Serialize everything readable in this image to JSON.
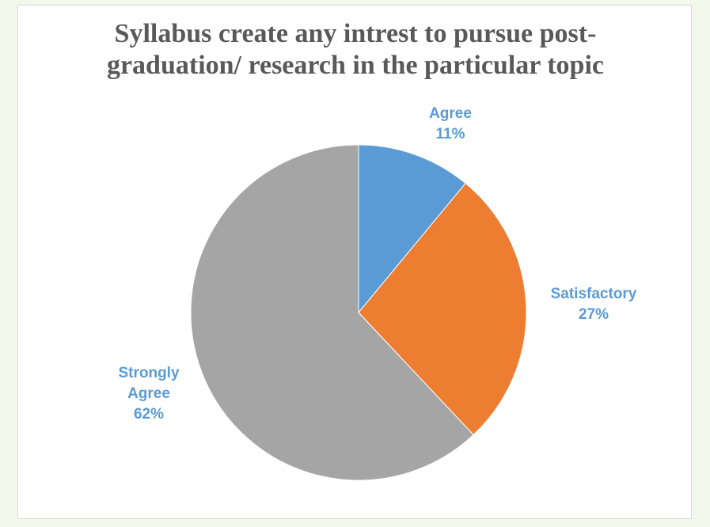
{
  "chart_data": {
    "type": "pie",
    "title_lines": [
      "Syllabus create any intrest to pursue post-",
      "graduation/ research in the particular topic"
    ],
    "slices": [
      {
        "category": "Agree",
        "value": 11,
        "value_label": "11%",
        "color": "#5b9bd5",
        "label_color": "#5b9bd5",
        "label_lines": [
          "Agree"
        ]
      },
      {
        "category": "Satisfactory",
        "value": 27,
        "value_label": "27%",
        "color": "#ed7d31",
        "label_color": "#5b9bd5",
        "label_lines": [
          "Satisfactory"
        ]
      },
      {
        "category": "Strongly Agree",
        "value": 62,
        "value_label": "62%",
        "color": "#a5a5a5",
        "label_color": "#5b9bd5",
        "label_lines": [
          "Strongly",
          "Agree"
        ]
      }
    ],
    "start_angle_deg": 0,
    "direction": "clockwise",
    "legend": "none"
  }
}
